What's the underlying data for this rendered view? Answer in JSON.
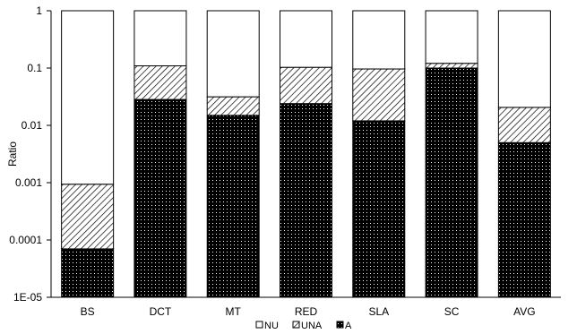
{
  "chart_data": {
    "type": "bar",
    "stacked": true,
    "y_scale": "log",
    "ylim": [
      1e-05,
      1
    ],
    "ylabel": "Ratio",
    "xlabel": "",
    "title": "",
    "grid": false,
    "legend_position": "bottom",
    "y_ticks": [
      1,
      0.1,
      0.01,
      0.001,
      0.0001,
      1e-05
    ],
    "y_tick_labels": [
      "1",
      "0.1",
      "0.01",
      "0.001",
      "0.0001",
      "1E-05"
    ],
    "categories": [
      "BS",
      "DCT",
      "MT",
      "RED",
      "SLA",
      "SC",
      "AVG"
    ],
    "series": [
      {
        "name": "NU",
        "pattern": "white",
        "values": [
          0.99906,
          0.8907,
          0.9685,
          0.897,
          0.9036,
          0.879,
          0.9794
        ]
      },
      {
        "name": "UNA",
        "pattern": "hatch",
        "values": [
          0.00087,
          0.081,
          0.0165,
          0.079,
          0.0844,
          0.021,
          0.0156
        ]
      },
      {
        "name": "A",
        "pattern": "dotted",
        "values": [
          7e-05,
          0.0283,
          0.015,
          0.024,
          0.012,
          0.1,
          0.005
        ]
      }
    ]
  }
}
